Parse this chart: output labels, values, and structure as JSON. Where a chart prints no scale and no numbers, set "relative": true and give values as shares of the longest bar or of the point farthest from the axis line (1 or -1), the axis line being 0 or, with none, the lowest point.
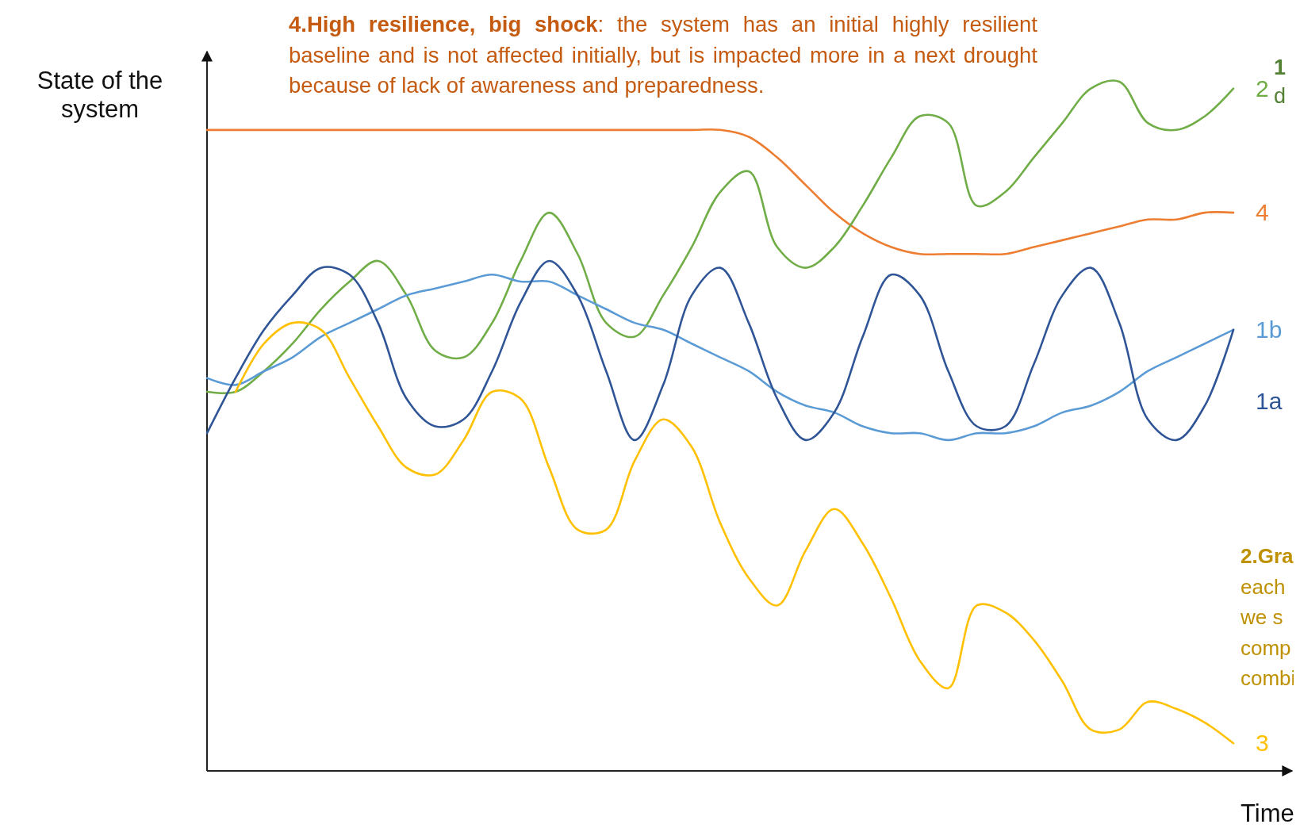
{
  "chart_data": {
    "type": "line",
    "relative": true,
    "ylabel": "State of the system",
    "xlabel": "Time",
    "marker": "none",
    "line_style": "solid",
    "annotations": [
      "4.High resilience, big shock: the system has an initial highly resilient baseline and is not affected initially, but is impacted more in a next drought because of lack of awareness and preparedness.",
      "1\nd",
      "2.Gra\neach\nwe s\ncomp\ncombi"
    ],
    "categories": [
      null,
      null,
      null,
      null,
      null,
      null,
      null,
      null,
      null,
      null,
      null,
      null,
      null,
      null,
      null,
      null,
      null,
      null,
      null,
      null,
      null,
      null,
      null,
      null,
      null,
      null,
      null,
      null,
      null,
      null,
      null,
      null,
      null,
      null,
      null,
      null,
      null
    ],
    "series": [
      {
        "name": "4",
        "color": "#ed7d31",
        "values": [
          0.93,
          0.93,
          0.93,
          0.93,
          0.93,
          0.93,
          0.93,
          0.93,
          0.93,
          0.93,
          0.93,
          0.93,
          0.93,
          0.93,
          0.93,
          0.93,
          0.93,
          0.93,
          0.93,
          0.92,
          0.89,
          0.85,
          0.81,
          0.78,
          0.76,
          0.75,
          0.75,
          0.75,
          0.75,
          0.76,
          0.77,
          0.78,
          0.79,
          0.8,
          0.8,
          0.81,
          0.81
        ]
      },
      {
        "name": "2",
        "color": "#70ad47",
        "values": [
          0.55,
          0.55,
          0.58,
          0.62,
          0.67,
          0.71,
          0.74,
          0.69,
          0.61,
          0.6,
          0.65,
          0.74,
          0.81,
          0.75,
          0.65,
          0.63,
          0.69,
          0.76,
          0.84,
          0.87,
          0.76,
          0.73,
          0.76,
          0.82,
          0.89,
          0.95,
          0.94,
          0.82,
          0.84,
          0.89,
          0.94,
          0.99,
          1.0,
          0.94,
          0.93,
          0.95,
          0.99
        ]
      },
      {
        "name": "1b",
        "color": "#5b9bd5",
        "values": [
          0.57,
          0.56,
          0.58,
          0.6,
          0.63,
          0.65,
          0.67,
          0.69,
          0.7,
          0.71,
          0.72,
          0.71,
          0.71,
          0.69,
          0.67,
          0.65,
          0.64,
          0.62,
          0.6,
          0.58,
          0.55,
          0.53,
          0.52,
          0.5,
          0.49,
          0.49,
          0.48,
          0.49,
          0.49,
          0.5,
          0.52,
          0.53,
          0.55,
          0.58,
          0.6,
          0.62,
          0.64
        ]
      },
      {
        "name": "1a",
        "color": "#2f5597",
        "values": [
          0.49,
          0.57,
          0.64,
          0.69,
          0.73,
          0.72,
          0.65,
          0.54,
          0.5,
          0.51,
          0.58,
          0.68,
          0.74,
          0.69,
          0.58,
          0.48,
          0.56,
          0.69,
          0.73,
          0.65,
          0.54,
          0.48,
          0.52,
          0.63,
          0.72,
          0.69,
          0.58,
          0.5,
          0.5,
          0.59,
          0.69,
          0.73,
          0.65,
          0.51,
          0.48,
          0.53,
          0.64
        ]
      },
      {
        "name": "3",
        "color": "#ffc000",
        "values": [
          null,
          0.55,
          0.62,
          0.65,
          0.64,
          0.57,
          0.5,
          0.44,
          0.43,
          0.48,
          0.55,
          0.54,
          0.44,
          0.35,
          0.35,
          0.45,
          0.51,
          0.47,
          0.36,
          0.28,
          0.24,
          0.32,
          0.38,
          0.33,
          0.25,
          0.16,
          0.12,
          0.24,
          0.23,
          0.19,
          0.13,
          0.06,
          0.06,
          0.1,
          0.09,
          0.07,
          0.04
        ]
      }
    ]
  }
}
